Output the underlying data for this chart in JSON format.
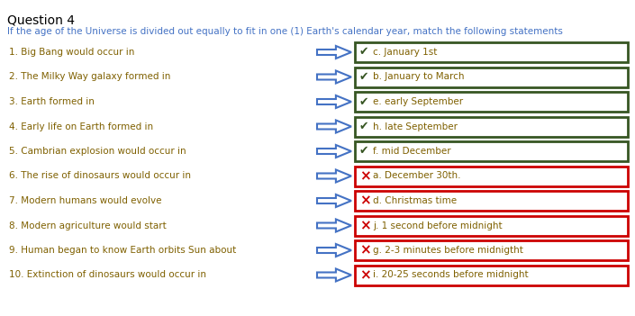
{
  "title": "Question 4",
  "subtitle": "If the age of the Universe is divided out equally to fit in one (1) Earth's calendar year, match the following statements",
  "title_color": "#000000",
  "subtitle_color": "#4472c4",
  "questions": [
    "1. Big Bang would occur in",
    "2. The Milky Way galaxy formed in",
    "3. Earth formed in",
    "4. Early life on Earth formed in",
    "5. Cambrian explosion would occur in",
    "6. The rise of dinosaurs would occur in",
    "7. Modern humans would evolve",
    "8. Modern agriculture would start",
    "9. Human began to know Earth orbits Sun about",
    "10. Extinction of dinosaurs would occur in"
  ],
  "answers": [
    "c. January 1st",
    "b. January to March",
    "e. early September",
    "h. late September",
    "f. mid December",
    "a. December 30th.",
    "d. Christmas time",
    "j. 1 second before midnight",
    "g. 2-3 minutes before midnigtht",
    "i. 20-25 seconds before midnight"
  ],
  "correct": [
    true,
    true,
    true,
    true,
    true,
    false,
    false,
    false,
    false,
    false
  ],
  "question_color": "#7f6000",
  "correct_border": "#375623",
  "wrong_border": "#cc0000",
  "correct_check_color": "#375623",
  "wrong_x_color": "#cc0000",
  "answer_text_color": "#7f6000",
  "box_fill": "#ffffff",
  "arrow_color": "#4472c4",
  "title_fontsize": 10,
  "subtitle_fontsize": 7.5,
  "question_fontsize": 7.5,
  "answer_fontsize": 7.5,
  "fig_width": 7.05,
  "fig_height": 3.51,
  "dpi": 100
}
